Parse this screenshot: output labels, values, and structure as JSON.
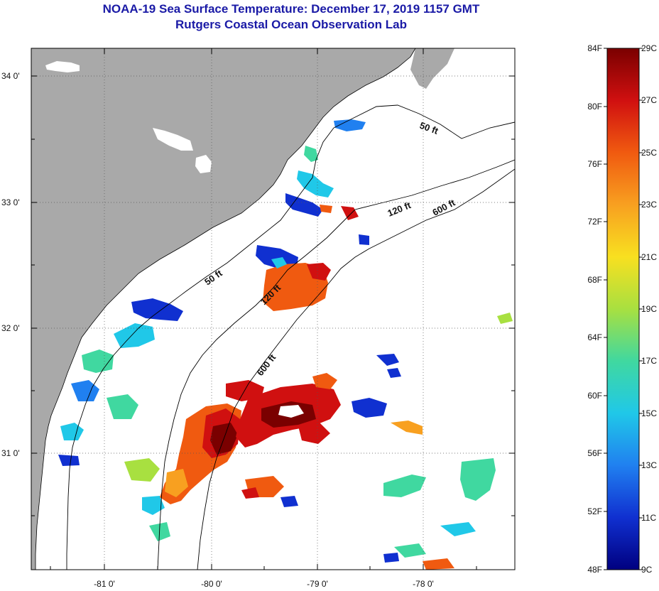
{
  "title": {
    "line1": "NOAA-19 Sea Surface Temperature:  December 17, 2019 1157 GMT",
    "line2": "Rutgers Coastal Ocean Observation Lab"
  },
  "map": {
    "lat_labels": [
      "34 0'",
      "33 0'",
      "32 0'",
      "31 0'"
    ],
    "lon_labels": [
      "-81 0'",
      "-80 0'",
      "-79 0'",
      "-78 0'"
    ],
    "contour_labels": [
      "50 ft",
      "120 ft",
      "600 ft",
      "50 ft",
      "120 ft",
      "600 ft"
    ],
    "colors": {
      "land": "#a9a9a9",
      "ocean_no_data": "#ffffff",
      "contour": "#000000"
    }
  },
  "colorbar": {
    "fahrenheit_labels": [
      "84F",
      "80F",
      "76F",
      "72F",
      "68F",
      "64F",
      "60F",
      "56F",
      "52F",
      "48F"
    ],
    "celsius_labels": [
      "29C",
      "27C",
      "25C",
      "23C",
      "21C",
      "19C",
      "17C",
      "15C",
      "13C",
      "11C",
      "9C"
    ],
    "colors": [
      "#7a0000",
      "#d01010",
      "#f05a10",
      "#f8a020",
      "#f8e020",
      "#a8e040",
      "#40d8a0",
      "#20c8e8",
      "#2080f0",
      "#1030d0",
      "#000080"
    ]
  }
}
